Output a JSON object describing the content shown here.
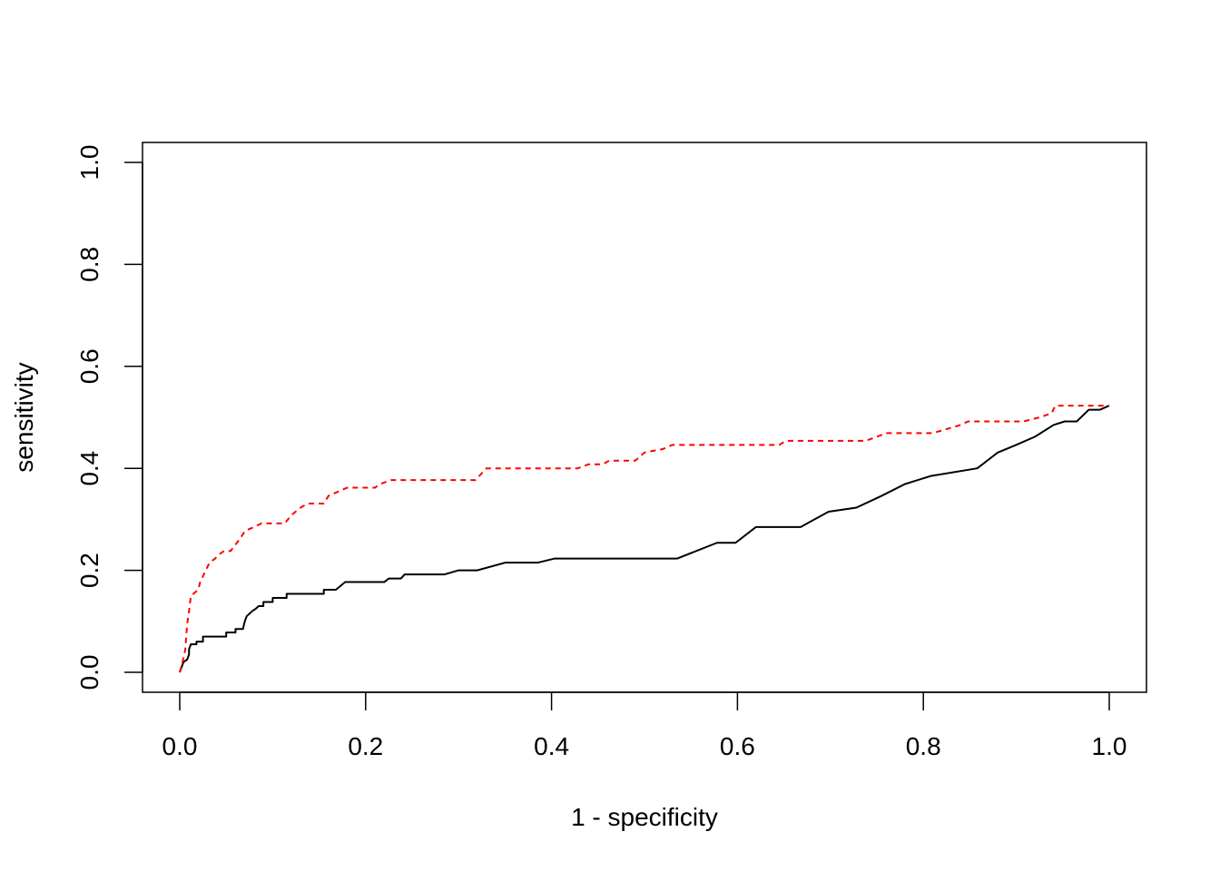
{
  "chart_data": {
    "type": "line",
    "title": "",
    "xlabel": "1 - specificity",
    "ylabel": "sensitivity",
    "xlim": [
      0,
      1
    ],
    "ylim": [
      0,
      1
    ],
    "x_ticks": [
      "0.0",
      "0.2",
      "0.4",
      "0.6",
      "0.8",
      "1.0"
    ],
    "y_ticks": [
      "0.0",
      "0.2",
      "0.4",
      "0.6",
      "0.8",
      "1.0"
    ],
    "grid": false,
    "legend": "none",
    "series": [
      {
        "color": "#000000",
        "style": "solid",
        "points": [
          [
            0.0,
            0.0
          ],
          [
            0.002,
            0.01
          ],
          [
            0.004,
            0.02
          ],
          [
            0.008,
            0.025
          ],
          [
            0.01,
            0.035
          ],
          [
            0.01,
            0.045
          ],
          [
            0.012,
            0.055
          ],
          [
            0.018,
            0.055
          ],
          [
            0.018,
            0.06
          ],
          [
            0.025,
            0.06
          ],
          [
            0.025,
            0.07
          ],
          [
            0.05,
            0.07
          ],
          [
            0.05,
            0.078
          ],
          [
            0.06,
            0.078
          ],
          [
            0.06,
            0.085
          ],
          [
            0.068,
            0.085
          ],
          [
            0.07,
            0.1
          ],
          [
            0.072,
            0.11
          ],
          [
            0.075,
            0.115
          ],
          [
            0.078,
            0.12
          ],
          [
            0.082,
            0.125
          ],
          [
            0.085,
            0.13
          ],
          [
            0.09,
            0.13
          ],
          [
            0.09,
            0.138
          ],
          [
            0.1,
            0.138
          ],
          [
            0.1,
            0.146
          ],
          [
            0.115,
            0.146
          ],
          [
            0.115,
            0.154
          ],
          [
            0.155,
            0.154
          ],
          [
            0.155,
            0.162
          ],
          [
            0.168,
            0.162
          ],
          [
            0.178,
            0.177
          ],
          [
            0.22,
            0.177
          ],
          [
            0.225,
            0.184
          ],
          [
            0.238,
            0.184
          ],
          [
            0.242,
            0.192
          ],
          [
            0.285,
            0.192
          ],
          [
            0.3,
            0.2
          ],
          [
            0.32,
            0.2
          ],
          [
            0.35,
            0.215
          ],
          [
            0.385,
            0.215
          ],
          [
            0.403,
            0.223
          ],
          [
            0.535,
            0.223
          ],
          [
            0.578,
            0.254
          ],
          [
            0.598,
            0.254
          ],
          [
            0.62,
            0.285
          ],
          [
            0.668,
            0.285
          ],
          [
            0.698,
            0.315
          ],
          [
            0.728,
            0.323
          ],
          [
            0.755,
            0.346
          ],
          [
            0.78,
            0.369
          ],
          [
            0.808,
            0.385
          ],
          [
            0.858,
            0.4
          ],
          [
            0.88,
            0.431
          ],
          [
            0.9,
            0.446
          ],
          [
            0.92,
            0.462
          ],
          [
            0.94,
            0.485
          ],
          [
            0.952,
            0.492
          ],
          [
            0.965,
            0.492
          ],
          [
            0.978,
            0.515
          ],
          [
            0.99,
            0.515
          ],
          [
            1.0,
            0.523
          ]
        ]
      },
      {
        "color": "#ff0000",
        "style": "dashed",
        "points": [
          [
            0.0,
            0.0
          ],
          [
            0.003,
            0.02
          ],
          [
            0.006,
            0.045
          ],
          [
            0.008,
            0.095
          ],
          [
            0.01,
            0.12
          ],
          [
            0.012,
            0.15
          ],
          [
            0.02,
            0.162
          ],
          [
            0.022,
            0.177
          ],
          [
            0.028,
            0.2
          ],
          [
            0.032,
            0.215
          ],
          [
            0.038,
            0.223
          ],
          [
            0.042,
            0.231
          ],
          [
            0.048,
            0.238
          ],
          [
            0.055,
            0.238
          ],
          [
            0.058,
            0.246
          ],
          [
            0.065,
            0.262
          ],
          [
            0.07,
            0.277
          ],
          [
            0.08,
            0.285
          ],
          [
            0.088,
            0.292
          ],
          [
            0.113,
            0.292
          ],
          [
            0.12,
            0.308
          ],
          [
            0.13,
            0.323
          ],
          [
            0.138,
            0.331
          ],
          [
            0.155,
            0.331
          ],
          [
            0.16,
            0.346
          ],
          [
            0.17,
            0.354
          ],
          [
            0.18,
            0.362
          ],
          [
            0.21,
            0.362
          ],
          [
            0.215,
            0.369
          ],
          [
            0.228,
            0.377
          ],
          [
            0.318,
            0.377
          ],
          [
            0.33,
            0.4
          ],
          [
            0.428,
            0.4
          ],
          [
            0.44,
            0.408
          ],
          [
            0.455,
            0.408
          ],
          [
            0.462,
            0.415
          ],
          [
            0.49,
            0.415
          ],
          [
            0.5,
            0.431
          ],
          [
            0.52,
            0.438
          ],
          [
            0.53,
            0.446
          ],
          [
            0.645,
            0.446
          ],
          [
            0.652,
            0.454
          ],
          [
            0.738,
            0.454
          ],
          [
            0.75,
            0.462
          ],
          [
            0.76,
            0.469
          ],
          [
            0.81,
            0.469
          ],
          [
            0.825,
            0.477
          ],
          [
            0.84,
            0.485
          ],
          [
            0.848,
            0.492
          ],
          [
            0.908,
            0.492
          ],
          [
            0.925,
            0.5
          ],
          [
            0.938,
            0.508
          ],
          [
            0.942,
            0.523
          ],
          [
            1.0,
            0.523
          ]
        ]
      }
    ]
  }
}
